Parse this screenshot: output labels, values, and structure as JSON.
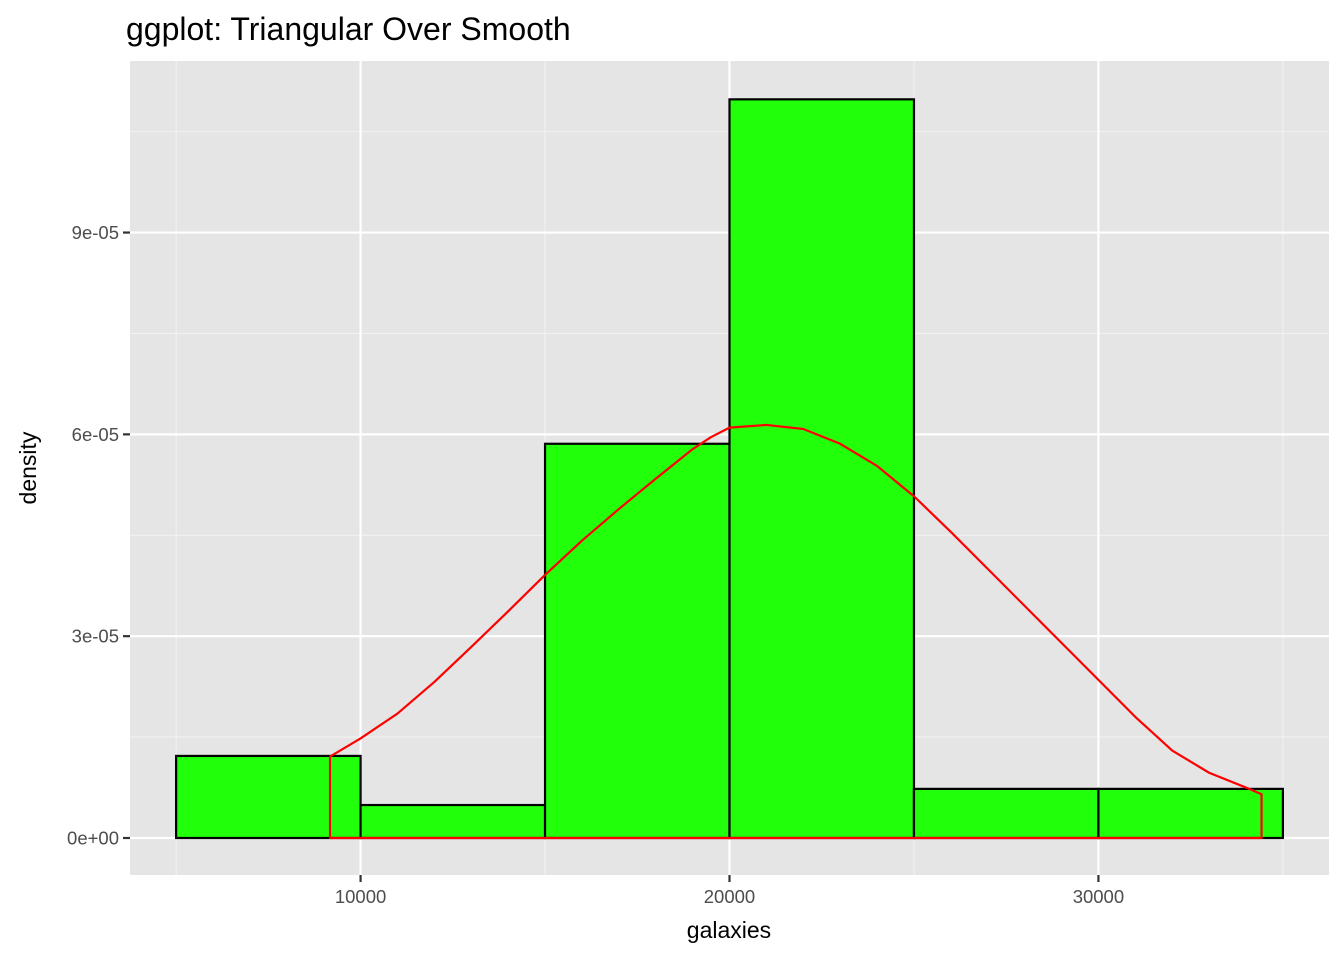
{
  "chart_data": {
    "type": "bar",
    "title": "ggplot: Triangular Over Smooth",
    "xlabel": "galaxies",
    "ylabel": "density",
    "xlim": [
      3750,
      36250
    ],
    "ylim": [
      -5.5e-06,
      0.0001155
    ],
    "x_ticks": [
      10000,
      20000,
      30000
    ],
    "x_tick_labels": [
      "10000",
      "20000",
      "30000"
    ],
    "y_ticks": [
      0,
      3e-05,
      6e-05,
      9e-05
    ],
    "y_tick_labels": [
      "0e+00",
      "3e-05",
      "6e-05",
      "9e-05"
    ],
    "grid": true,
    "bins": [
      {
        "x0": 5000,
        "x1": 10000,
        "density": 1.22e-05
      },
      {
        "x0": 10000,
        "x1": 15000,
        "density": 4.9e-06
      },
      {
        "x0": 15000,
        "x1": 20000,
        "density": 5.86e-05
      },
      {
        "x0": 20000,
        "x1": 25000,
        "density": 0.0001098
      },
      {
        "x0": 25000,
        "x1": 30000,
        "density": 7.3e-06
      },
      {
        "x0": 30000,
        "x1": 35000,
        "density": 7.3e-06
      }
    ],
    "density_curve": {
      "x": [
        9172,
        10000,
        11000,
        12000,
        13000,
        14000,
        15000,
        16000,
        17000,
        18000,
        19000,
        19500,
        20000,
        21000,
        22000,
        23000,
        24000,
        25000,
        26000,
        27000,
        28000,
        29000,
        30000,
        31000,
        32000,
        33000,
        34000,
        34421
      ],
      "y": [
        1.21e-05,
        1.48e-05,
        1.85e-05,
        2.32e-05,
        2.84e-05,
        3.37e-05,
        3.91e-05,
        4.42e-05,
        4.89e-05,
        5.34e-05,
        5.78e-05,
        5.96e-05,
        6.1e-05,
        6.14e-05,
        6.08e-05,
        5.86e-05,
        5.53e-05,
        5.08e-05,
        4.55e-05,
        4e-05,
        3.45e-05,
        2.9e-05,
        2.35e-05,
        1.8e-05,
        1.3e-05,
        9.7e-06,
        7.5e-06,
        6.5e-06
      ]
    },
    "colors": {
      "panel_background": "#e5e5e5",
      "grid_major": "#ffffff",
      "grid_minor": "#f2f2f2",
      "bar_fill": "#22ff0a",
      "bar_stroke": "#000000",
      "curve": "#ff0000",
      "tick": "#333333"
    }
  }
}
